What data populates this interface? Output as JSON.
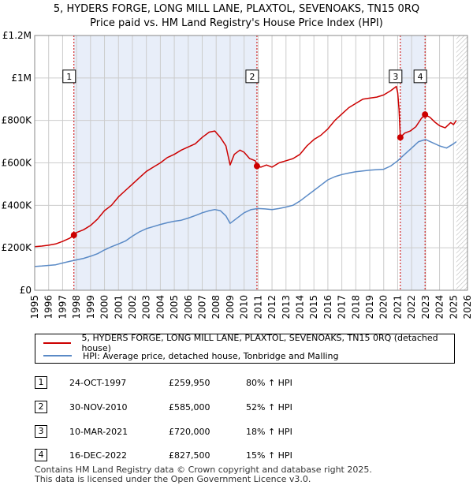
{
  "title_line1": "5, HYDERS FORGE, LONG MILL LANE, PLAXTOL, SEVENOAKS, TN15 0RQ",
  "title_line2": "Price paid vs. HM Land Registry's House Price Index (HPI)",
  "colors": {
    "property_line": "#cc0000",
    "hpi_line": "#5a8ac6",
    "shade": "#e8eef9",
    "grid": "#cccccc",
    "marker_line": "#cc0000"
  },
  "legend": {
    "property_label": "5, HYDERS FORGE, LONG MILL LANE, PLAXTOL, SEVENOAKS, TN15 0RQ (detached house)",
    "hpi_label": "HPI: Average price, detached house, Tonbridge and Malling"
  },
  "sales": [
    {
      "num": "1",
      "date": "24-OCT-1997",
      "price": "£259,950",
      "hpi": "80% ↑ HPI"
    },
    {
      "num": "2",
      "date": "30-NOV-2010",
      "price": "£585,000",
      "hpi": "52% ↑ HPI"
    },
    {
      "num": "3",
      "date": "10-MAR-2021",
      "price": "£720,000",
      "hpi": "18% ↑ HPI"
    },
    {
      "num": "4",
      "date": "16-DEC-2022",
      "price": "£827,500",
      "hpi": "15% ↑ HPI"
    }
  ],
  "footer_line1": "Contains HM Land Registry data © Crown copyright and database right 2025.",
  "footer_line2": "This data is licensed under the Open Government Licence v3.0.",
  "chart_data": {
    "type": "line",
    "title": "5, HYDERS FORGE, LONG MILL LANE, PLAXTOL, SEVENOAKS, TN15 0RQ",
    "subtitle": "Price paid vs. HM Land Registry's House Price Index (HPI)",
    "xlim": [
      1995,
      2026
    ],
    "ylim": [
      0,
      1200000
    ],
    "x_ticks": [
      1995,
      1996,
      1997,
      1998,
      1999,
      2000,
      2001,
      2002,
      2003,
      2004,
      2005,
      2006,
      2007,
      2008,
      2009,
      2010,
      2011,
      2012,
      2013,
      2014,
      2015,
      2016,
      2017,
      2018,
      2019,
      2020,
      2021,
      2022,
      2023,
      2024,
      2025,
      2026
    ],
    "y_ticks": [
      {
        "value": 0,
        "label": "£0"
      },
      {
        "value": 200000,
        "label": "£200K"
      },
      {
        "value": 400000,
        "label": "£400K"
      },
      {
        "value": 600000,
        "label": "£600K"
      },
      {
        "value": 800000,
        "label": "£800K"
      },
      {
        "value": 1000000,
        "label": "£1M"
      },
      {
        "value": 1200000,
        "label": "£1.2M"
      }
    ],
    "hatch_from": 2025.2,
    "shaded_ranges": [
      [
        1997.81,
        2010.92
      ],
      [
        2021.19,
        2022.96
      ]
    ],
    "sale_markers": [
      {
        "num": "1",
        "x": 1997.81,
        "y": 259950
      },
      {
        "num": "2",
        "x": 2010.92,
        "y": 585000
      },
      {
        "num": "3",
        "x": 2021.19,
        "y": 720000
      },
      {
        "num": "4",
        "x": 2022.96,
        "y": 827500
      }
    ],
    "series": [
      {
        "name": "5, HYDERS FORGE, LONG MILL LANE, PLAXTOL, SEVENOAKS, TN15 0RQ (detached house)",
        "x": [
          1995,
          1995.5,
          1996,
          1996.5,
          1997,
          1997.5,
          1997.81,
          1998,
          1998.5,
          1999,
          1999.5,
          2000,
          2000.5,
          2001,
          2001.5,
          2002,
          2002.5,
          2003,
          2003.5,
          2004,
          2004.5,
          2005,
          2005.5,
          2006,
          2006.5,
          2007,
          2007.5,
          2007.9,
          2008.3,
          2008.7,
          2009,
          2009.3,
          2009.7,
          2010,
          2010.4,
          2010.8,
          2010.92,
          2011.2,
          2011.6,
          2012,
          2012.5,
          2013,
          2013.5,
          2014,
          2014.5,
          2015,
          2015.5,
          2016,
          2016.5,
          2017,
          2017.5,
          2018,
          2018.5,
          2019,
          2019.5,
          2020,
          2020.5,
          2020.9,
          2021.0,
          2021.1,
          2021.19,
          2021.5,
          2021.9,
          2022.3,
          2022.7,
          2022.96,
          2023.3,
          2023.7,
          2024,
          2024.4,
          2024.8,
          2025.0,
          2025.2
        ],
        "y": [
          205000,
          208000,
          212000,
          218000,
          230000,
          245000,
          259950,
          272000,
          285000,
          305000,
          335000,
          375000,
          400000,
          440000,
          470000,
          500000,
          530000,
          560000,
          580000,
          600000,
          625000,
          640000,
          660000,
          675000,
          690000,
          720000,
          745000,
          750000,
          720000,
          680000,
          590000,
          640000,
          660000,
          650000,
          620000,
          610000,
          585000,
          580000,
          590000,
          580000,
          600000,
          610000,
          620000,
          640000,
          680000,
          710000,
          730000,
          760000,
          800000,
          830000,
          860000,
          880000,
          900000,
          905000,
          910000,
          920000,
          940000,
          960000,
          930000,
          850000,
          720000,
          740000,
          750000,
          770000,
          810000,
          827500,
          815000,
          790000,
          775000,
          765000,
          790000,
          780000,
          800000
        ]
      },
      {
        "name": "HPI: Average price, detached house, Tonbridge and Malling",
        "x": [
          1995,
          1995.5,
          1996,
          1996.5,
          1997,
          1997.5,
          1998,
          1998.5,
          1999,
          1999.5,
          2000,
          2000.5,
          2001,
          2001.5,
          2002,
          2002.5,
          2003,
          2003.5,
          2004,
          2004.5,
          2005,
          2005.5,
          2006,
          2006.5,
          2007,
          2007.5,
          2007.9,
          2008.3,
          2008.7,
          2009,
          2009.3,
          2009.7,
          2010,
          2010.5,
          2011,
          2011.5,
          2012,
          2012.5,
          2013,
          2013.5,
          2014,
          2014.5,
          2015,
          2015.5,
          2016,
          2016.5,
          2017,
          2017.5,
          2018,
          2018.5,
          2019,
          2019.5,
          2020,
          2020.5,
          2021,
          2021.5,
          2022,
          2022.5,
          2023,
          2023.5,
          2024,
          2024.5,
          2025,
          2025.2
        ],
        "y": [
          112000,
          114000,
          117000,
          120000,
          128000,
          136000,
          143000,
          150000,
          160000,
          172000,
          190000,
          205000,
          218000,
          232000,
          255000,
          275000,
          290000,
          300000,
          310000,
          318000,
          325000,
          330000,
          340000,
          352000,
          365000,
          375000,
          380000,
          375000,
          350000,
          315000,
          330000,
          350000,
          365000,
          380000,
          385000,
          383000,
          380000,
          385000,
          392000,
          400000,
          420000,
          445000,
          470000,
          495000,
          520000,
          535000,
          545000,
          552000,
          558000,
          562000,
          566000,
          568000,
          570000,
          585000,
          610000,
          640000,
          670000,
          700000,
          710000,
          695000,
          680000,
          670000,
          690000,
          700000
        ]
      }
    ]
  }
}
